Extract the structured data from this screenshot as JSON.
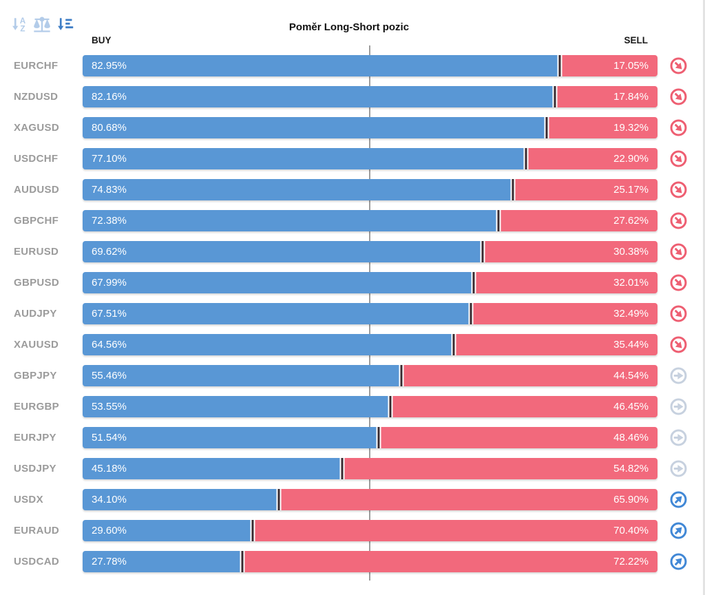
{
  "window": {
    "title": "Poměr Long-Short pozic"
  },
  "toolbar": {
    "icons": [
      {
        "name": "sort-alphabetical-icon",
        "state": "inactive"
      },
      {
        "name": "balance-scale-icon",
        "state": "inactive"
      },
      {
        "name": "sort-amount-icon",
        "state": "active"
      }
    ]
  },
  "header": {
    "buy_label": "BUY",
    "sell_label": "SELL"
  },
  "colors": {
    "buy_bar": "#5997d5",
    "sell_bar": "#f2697c",
    "divider": "#3a2b31",
    "center_line": "#9e9e9e",
    "pair_label": "#9b9b9b",
    "title_text": "#111111",
    "trend_down": "#ee5f72",
    "trend_neutral": "#c7d1df",
    "trend_up": "#4188d6",
    "toolbar_inactive": "#b3cce9",
    "toolbar_active": "#3f7ec6",
    "scrollbar": "#e3e3e3"
  },
  "chart_data": {
    "type": "bar",
    "orientation": "horizontal",
    "stacked": true,
    "title": "Poměr Long-Short pozic",
    "legend": [
      "BUY",
      "SELL"
    ],
    "unit": "%",
    "xlim": [
      0,
      100
    ],
    "center_line": 50,
    "grid": "single-center-line",
    "categories": [
      "EURCHF",
      "NZDUSD",
      "XAGUSD",
      "USDCHF",
      "AUDUSD",
      "GBPCHF",
      "EURUSD",
      "GBPUSD",
      "AUDJPY",
      "XAUUSD",
      "GBPJPY",
      "EURGBP",
      "EURJPY",
      "USDJPY",
      "USDX",
      "EURAUD",
      "USDCAD"
    ],
    "series": [
      {
        "name": "BUY",
        "values": [
          82.95,
          82.16,
          80.68,
          77.1,
          74.83,
          72.38,
          69.62,
          67.99,
          67.51,
          64.56,
          55.46,
          53.55,
          51.54,
          45.18,
          34.1,
          29.6,
          27.78
        ]
      },
      {
        "name": "SELL",
        "values": [
          17.05,
          17.84,
          19.32,
          22.9,
          25.17,
          27.62,
          30.38,
          32.01,
          32.49,
          35.44,
          44.54,
          46.45,
          48.46,
          54.82,
          65.9,
          70.4,
          72.22
        ]
      }
    ],
    "rows": [
      {
        "pair": "EURCHF",
        "buy": 82.95,
        "sell": 17.05,
        "buy_label": "82.95%",
        "sell_label": "17.05%",
        "trend": "down"
      },
      {
        "pair": "NZDUSD",
        "buy": 82.16,
        "sell": 17.84,
        "buy_label": "82.16%",
        "sell_label": "17.84%",
        "trend": "down"
      },
      {
        "pair": "XAGUSD",
        "buy": 80.68,
        "sell": 19.32,
        "buy_label": "80.68%",
        "sell_label": "19.32%",
        "trend": "down"
      },
      {
        "pair": "USDCHF",
        "buy": 77.1,
        "sell": 22.9,
        "buy_label": "77.10%",
        "sell_label": "22.90%",
        "trend": "down"
      },
      {
        "pair": "AUDUSD",
        "buy": 74.83,
        "sell": 25.17,
        "buy_label": "74.83%",
        "sell_label": "25.17%",
        "trend": "down"
      },
      {
        "pair": "GBPCHF",
        "buy": 72.38,
        "sell": 27.62,
        "buy_label": "72.38%",
        "sell_label": "27.62%",
        "trend": "down"
      },
      {
        "pair": "EURUSD",
        "buy": 69.62,
        "sell": 30.38,
        "buy_label": "69.62%",
        "sell_label": "30.38%",
        "trend": "down"
      },
      {
        "pair": "GBPUSD",
        "buy": 67.99,
        "sell": 32.01,
        "buy_label": "67.99%",
        "sell_label": "32.01%",
        "trend": "down"
      },
      {
        "pair": "AUDJPY",
        "buy": 67.51,
        "sell": 32.49,
        "buy_label": "67.51%",
        "sell_label": "32.49%",
        "trend": "down"
      },
      {
        "pair": "XAUUSD",
        "buy": 64.56,
        "sell": 35.44,
        "buy_label": "64.56%",
        "sell_label": "35.44%",
        "trend": "down"
      },
      {
        "pair": "GBPJPY",
        "buy": 55.46,
        "sell": 44.54,
        "buy_label": "55.46%",
        "sell_label": "44.54%",
        "trend": "neutral"
      },
      {
        "pair": "EURGBP",
        "buy": 53.55,
        "sell": 46.45,
        "buy_label": "53.55%",
        "sell_label": "46.45%",
        "trend": "neutral"
      },
      {
        "pair": "EURJPY",
        "buy": 51.54,
        "sell": 48.46,
        "buy_label": "51.54%",
        "sell_label": "48.46%",
        "trend": "neutral"
      },
      {
        "pair": "USDJPY",
        "buy": 45.18,
        "sell": 54.82,
        "buy_label": "45.18%",
        "sell_label": "54.82%",
        "trend": "neutral"
      },
      {
        "pair": "USDX",
        "buy": 34.1,
        "sell": 65.9,
        "buy_label": "34.10%",
        "sell_label": "65.90%",
        "trend": "up"
      },
      {
        "pair": "EURAUD",
        "buy": 29.6,
        "sell": 70.4,
        "buy_label": "29.60%",
        "sell_label": "70.40%",
        "trend": "up"
      },
      {
        "pair": "USDCAD",
        "buy": 27.78,
        "sell": 72.22,
        "buy_label": "27.78%",
        "sell_label": "72.22%",
        "trend": "up"
      }
    ]
  }
}
